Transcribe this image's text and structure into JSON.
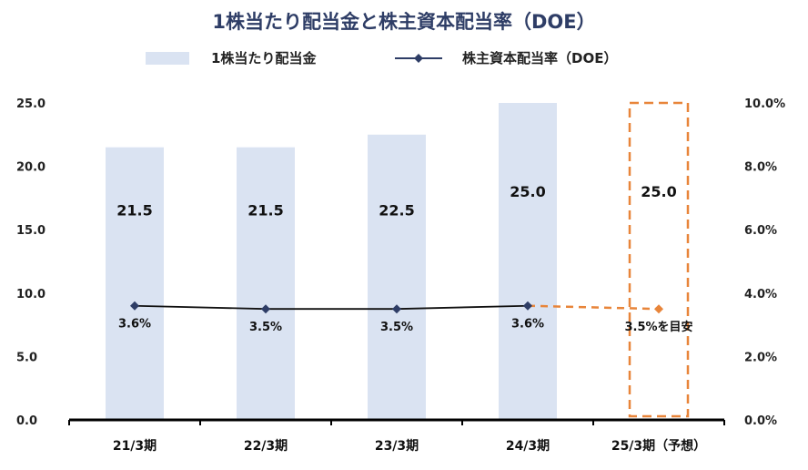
{
  "title": "1株当たり配当金と株主資本配当率（DOE）",
  "legend": {
    "bar_label": "1株当たり配当金",
    "line_label": "株主資本配当率（DOE）"
  },
  "colors": {
    "bar": "#dae3f2",
    "line": "#2e3d66",
    "marker": "#2e3d66",
    "forecast": "#e8853a",
    "title": "#2e3d66",
    "axis": "#000000"
  },
  "chart_data": {
    "type": "bar",
    "categories": [
      "21/3期",
      "22/3期",
      "23/3期",
      "24/3期",
      "25/3期（予想）"
    ],
    "series": [
      {
        "name": "1株当たり配当金",
        "type": "bar",
        "axis": "left",
        "values": [
          21.5,
          21.5,
          22.5,
          25.0,
          null
        ],
        "labels": [
          "21.5",
          "21.5",
          "22.5",
          "25.0",
          null
        ]
      },
      {
        "name": "株主資本配当率（DOE）",
        "type": "line",
        "axis": "right",
        "values": [
          3.6,
          3.5,
          3.5,
          3.6,
          3.5
        ],
        "labels": [
          "3.6%",
          "3.5%",
          "3.5%",
          "3.6%",
          "3.5%を目安"
        ]
      }
    ],
    "forecast": {
      "category_index": 4,
      "dividend_value": 25.0,
      "dividend_label": "25.0",
      "rate_value": 3.5,
      "rate_label": "3.5%を目安"
    },
    "y_left": {
      "ylim": [
        0,
        25
      ],
      "ticks": [
        0,
        5,
        10,
        15,
        20,
        25
      ],
      "tick_labels": [
        "0.0",
        "5.0",
        "10.0",
        "15.0",
        "20.0",
        "25.0"
      ]
    },
    "y_right": {
      "ylim": [
        0,
        10
      ],
      "ticks": [
        0,
        2,
        4,
        6,
        8,
        10
      ],
      "tick_labels": [
        "0.0%",
        "2.0%",
        "4.0%",
        "6.0%",
        "8.0%",
        "10.0%"
      ]
    },
    "xlabel": "",
    "ylabel": "",
    "grid": false,
    "legend_position": "top"
  }
}
